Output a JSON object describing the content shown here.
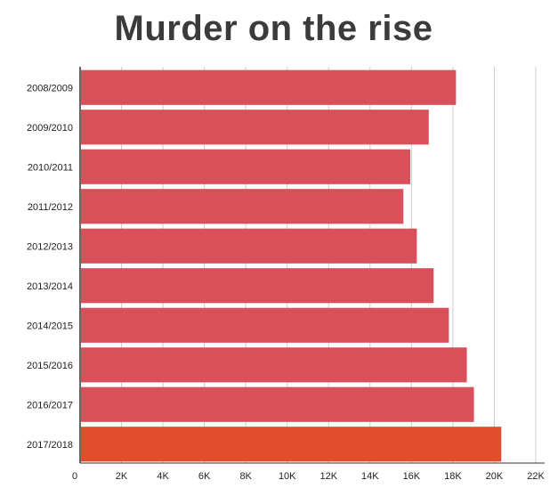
{
  "chart_data": {
    "type": "bar",
    "orientation": "horizontal",
    "title": "Murder on the rise",
    "xlabel": "",
    "ylabel": "",
    "categories": [
      "2008/2009",
      "2009/2010",
      "2010/2011",
      "2011/2012",
      "2012/2013",
      "2013/2014",
      "2014/2015",
      "2015/2016",
      "2016/2017",
      "2017/2018"
    ],
    "values": [
      18148,
      16834,
      15940,
      15609,
      16259,
      17068,
      17805,
      18673,
      19016,
      20336
    ],
    "xlim": [
      0,
      22000
    ],
    "xticks": [
      0,
      2000,
      4000,
      6000,
      8000,
      10000,
      12000,
      14000,
      16000,
      18000,
      20000,
      22000
    ],
    "xtick_labels": [
      "0",
      "2K",
      "4K",
      "6K",
      "8K",
      "10K",
      "12K",
      "14K",
      "16K",
      "18K",
      "20K",
      "22K"
    ],
    "grid": true,
    "legend": "none",
    "colors": {
      "bar": "#d9505a",
      "highlight_bar": "#e24e2c",
      "grid": "#cccccc",
      "axis": "#333333",
      "title": "#3b3b3b"
    },
    "highlight_index": 9
  }
}
